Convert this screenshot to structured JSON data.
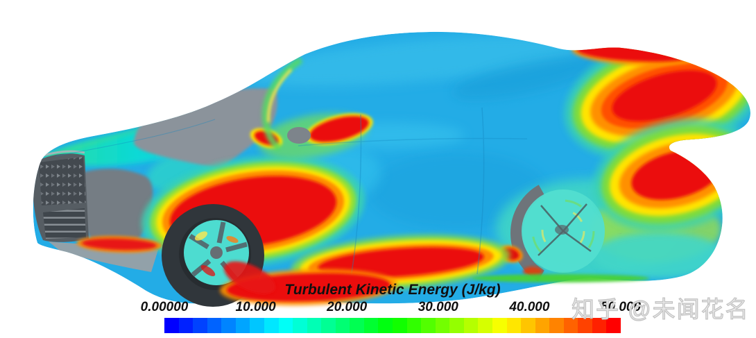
{
  "colorbar": {
    "title": "Turbulent Kinetic Energy (J/kg)",
    "tick_labels": [
      "0.00000",
      "10.000",
      "20.000",
      "30.000",
      "40.000",
      "50.000"
    ],
    "segments": [
      "#0000FF",
      "#0021FF",
      "#0042FF",
      "#0063FF",
      "#0084FF",
      "#00A5FF",
      "#00C6FF",
      "#00E7FF",
      "#00FFF7",
      "#00FFD6",
      "#00FFB5",
      "#00FF94",
      "#00FF73",
      "#00FF52",
      "#00FF31",
      "#00FF10",
      "#11FF00",
      "#31FF00",
      "#52FF00",
      "#73FF00",
      "#94FF00",
      "#B5FF00",
      "#D6FF00",
      "#F7FF00",
      "#FFE600",
      "#FFC500",
      "#FFA400",
      "#FF8300",
      "#FF6200",
      "#FF4200",
      "#FF2100",
      "#FF0000"
    ]
  },
  "watermark": {
    "text": "知乎 @未闻花名"
  },
  "chart_data": {
    "type": "heatmap",
    "title": "Turbulent Kinetic Energy (J/kg)",
    "unit": "J/kg",
    "range": [
      0,
      50
    ],
    "ticks": [
      0,
      10,
      20,
      30,
      40,
      50
    ],
    "tick_labels": [
      "0.00000",
      "10.000",
      "20.000",
      "30.000",
      "40.000",
      "50.000"
    ],
    "colormap": "rainbow blue-to-red, 32 discrete bands (see colorbar.segments)",
    "legend_position": "bottom, horizontal, title above bar",
    "subject": "CFD surface contour plot of turbulent kinetic energy on an SUV/crossover car, side view facing left",
    "regions": [
      {
        "zone": "roof, doors, glass and most body panels",
        "value": "≈3-10 (light blue)"
      },
      {
        "zone": "hood / bonnet",
        "value": "≈12-18 (cyan-teal, greenish leading edge)"
      },
      {
        "zone": "lower door + rocker panel behind front wheel",
        "value": ">50 (large saturated red blob with orange-yellow-green rim)"
      },
      {
        "zone": "side mirror area",
        "value": ">45 (red patches, yellow-green fringe, gray mirror housing)"
      },
      {
        "zone": "A-pillar edge",
        "value": "≈20-35 (green streak with yellow core)"
      },
      {
        "zone": "rear spoiler / D-pillar shoulder",
        "value": ">50 (red core, concentric orange-yellow-green rings, red band on top edge)"
      },
      {
        "zone": "rear quarter panel above rear wheel",
        "value": ">50 (red core with rainbow rings)"
      },
      {
        "zone": "rear fascia lower",
        "value": "≈8-25 (yellow to green to cyan fade)"
      },
      {
        "zone": "wheels",
        "value": "≈10-20 (cyan spokes) with small >45 red spots"
      },
      {
        "zone": "front grille, bumper corner, windshield",
        "value": "no contour data (gray geometry)"
      },
      {
        "zone": "under front bumper strip",
        "value": ">50 (thin red streak)"
      }
    ],
    "colors": {
      "body_low_tke": "#23ACE6",
      "hood_teal": "#10DCCC",
      "high_tke_red": "#EB1111",
      "geometry_gray": "#8B939B",
      "grille_dark_gray": "#565D63",
      "background": "#FFFFFF",
      "label_text": "#101010",
      "watermark_gray": "#C2C2C2"
    }
  }
}
